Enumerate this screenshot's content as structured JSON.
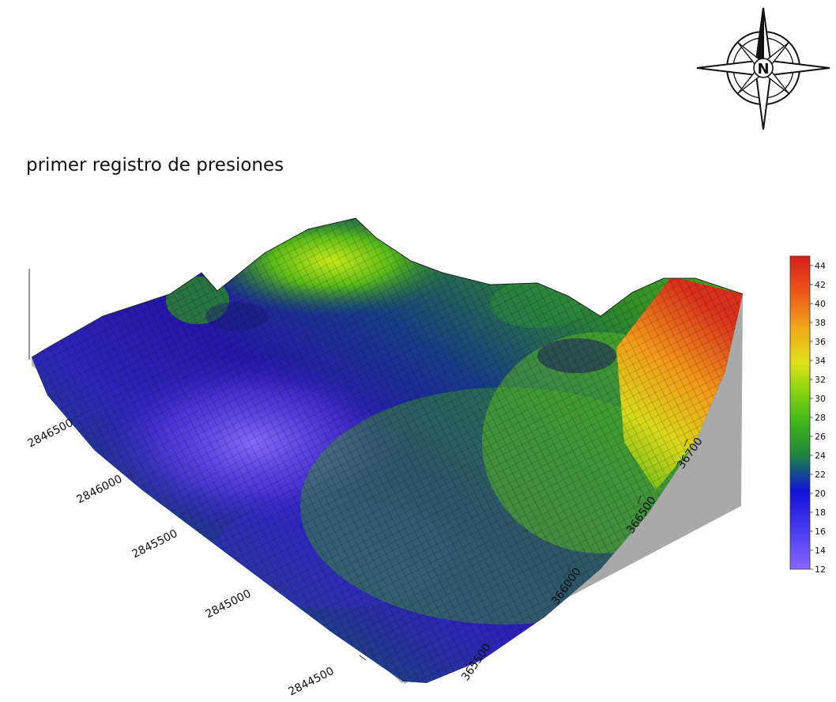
{
  "title": "primer registro de presiones",
  "compass": {
    "letter": "N"
  },
  "chart_data": {
    "type": "surface",
    "title": "primer registro de presiones",
    "x_axis": {
      "ticks": [
        "365500",
        "366000",
        "366500",
        "36700"
      ]
    },
    "y_axis": {
      "ticks": [
        "2844500",
        "2845000",
        "2845500",
        "2846000",
        "2846500"
      ]
    },
    "z_range": [
      12,
      45
    ],
    "colorbar": {
      "ticks": [
        44,
        42,
        40,
        38,
        36,
        34,
        32,
        30,
        28,
        26,
        24,
        22,
        20,
        18,
        16,
        14,
        12
      ],
      "colors": [
        "#8a66ff",
        "#5a4bf0",
        "#2323e0",
        "#1212c8",
        "#145a7a",
        "#1f8a3a",
        "#3fb61a",
        "#8ad40f",
        "#d9e01a",
        "#f2c21a",
        "#f28a1a",
        "#e84a16",
        "#d92020"
      ]
    }
  }
}
